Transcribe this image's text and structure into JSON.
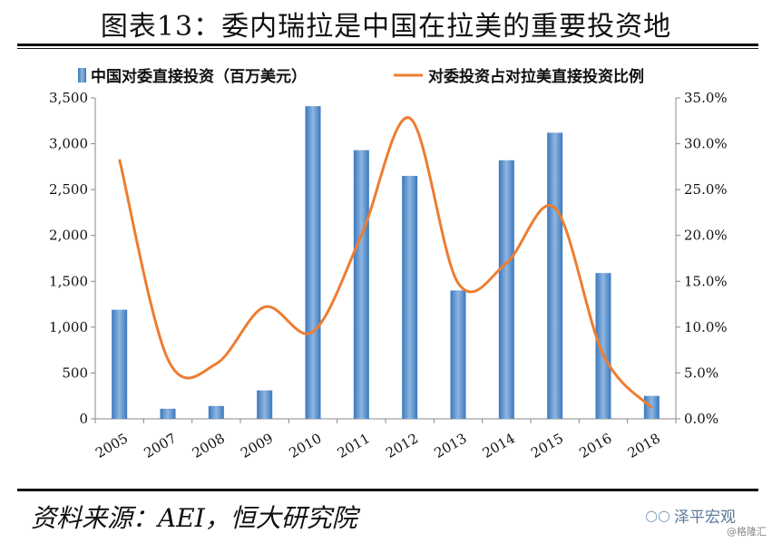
{
  "title": "图表13：委内瑞拉是中国在拉美的重要投资地",
  "source": "资料来源：AEI，恒大研究院",
  "watermark": "泽平宏观",
  "watermark_sub": "@格隆汇",
  "colors": {
    "bar": "#3a78bf",
    "bar_light": "#8fb6e0",
    "line": "#ed7d31"
  },
  "chart_data": {
    "type": "bar",
    "categories": [
      "2005",
      "2007",
      "2008",
      "2009",
      "2010",
      "2011",
      "2012",
      "2013",
      "2014",
      "2015",
      "2016",
      "2018"
    ],
    "series": [
      {
        "name": "中国对委直接投资（百万美元）",
        "type": "bar",
        "axis": "left",
        "values": [
          1190,
          110,
          140,
          310,
          3410,
          2930,
          2650,
          1400,
          2820,
          3120,
          1590,
          250
        ]
      },
      {
        "name": "对委投资占对拉美直接投资比例",
        "type": "line",
        "axis": "right",
        "values": [
          28.3,
          6.5,
          6.0,
          12.2,
          9.5,
          20.0,
          32.8,
          14.8,
          17.0,
          23.0,
          7.0,
          1.2
        ]
      }
    ],
    "y_left": {
      "ylim": [
        0,
        3500
      ],
      "ticks": [
        "0",
        "500",
        "1,000",
        "1,500",
        "2,000",
        "2,500",
        "3,000",
        "3,500"
      ]
    },
    "y_right": {
      "ylim": [
        0,
        35
      ],
      "ticks": [
        "0.0%",
        "5.0%",
        "10.0%",
        "15.0%",
        "20.0%",
        "25.0%",
        "30.0%",
        "35.0%"
      ]
    },
    "legend_position": "top",
    "grid": false
  }
}
